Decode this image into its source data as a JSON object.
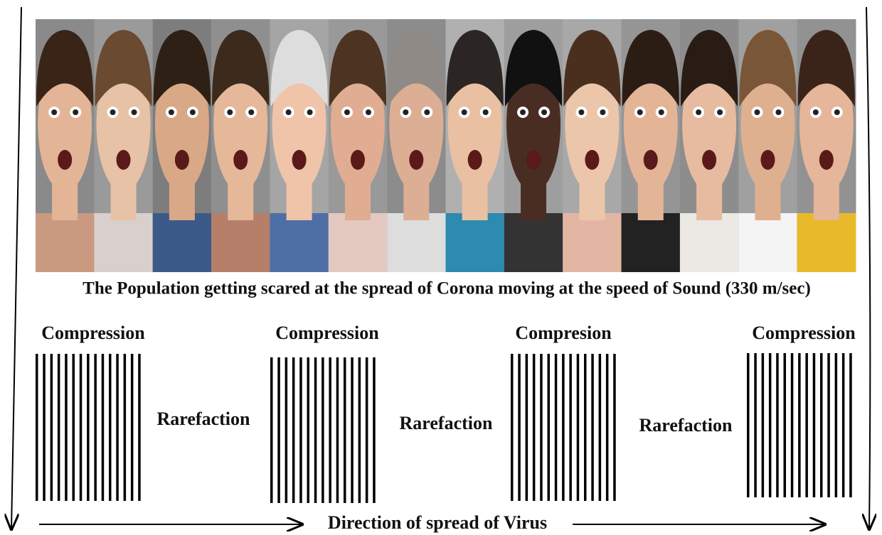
{
  "caption": "The Population getting scared at the spread of Corona moving at the speed of Sound (330 m/sec)",
  "compressions": [
    "Compression",
    "Compression",
    "Compresion",
    "Compression"
  ],
  "rarefactions": [
    "Rarefaction",
    "Rarefaction",
    "Rarefaction"
  ],
  "direction": "Direction of spread of Virus"
}
